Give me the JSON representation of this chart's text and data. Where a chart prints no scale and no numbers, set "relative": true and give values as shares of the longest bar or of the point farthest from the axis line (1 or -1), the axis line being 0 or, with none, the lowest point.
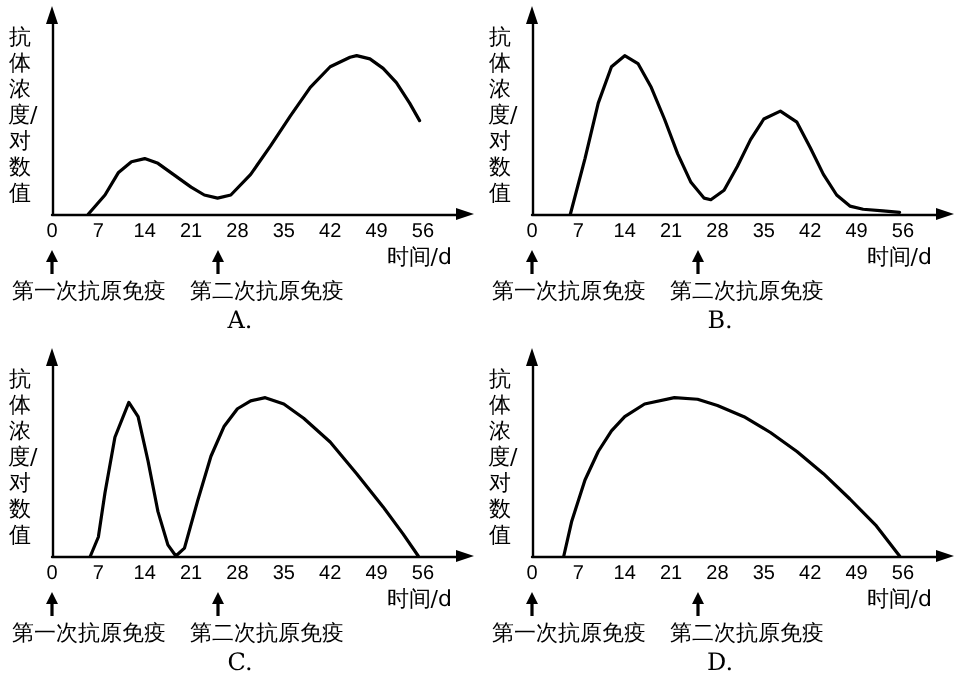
{
  "chart_data": [
    {
      "type": "line",
      "title": "A.",
      "xlabel": "时间/d",
      "ylabel": "抗体浓度/对数值",
      "relative": true,
      "xlim": [
        0,
        61
      ],
      "xticks": [
        0,
        7,
        14,
        21,
        28,
        35,
        42,
        49,
        56
      ],
      "tick_labels": "x",
      "marker": "none",
      "line_style": "solid",
      "annotations": [
        "第一次抗原免疫",
        "第二次抗原免疫"
      ],
      "series": [
        {
          "color": "#000000",
          "x": [
            5.5,
            8,
            10,
            12,
            14,
            16,
            18,
            21,
            23,
            25,
            27,
            30,
            33,
            36,
            39,
            42,
            45,
            46,
            48,
            50,
            52,
            54,
            55.5
          ],
          "values": [
            0,
            0.12,
            0.26,
            0.33,
            0.35,
            0.32,
            0.26,
            0.17,
            0.12,
            0.1,
            0.12,
            0.25,
            0.43,
            0.62,
            0.8,
            0.93,
            0.99,
            1,
            0.98,
            0.92,
            0.83,
            0.7,
            0.59
          ]
        }
      ]
    },
    {
      "type": "line",
      "title": "B.",
      "xlabel": "时间/d",
      "ylabel": "抗体浓度/对数值",
      "relative": true,
      "xlim": [
        0,
        61
      ],
      "xticks": [
        0,
        7,
        14,
        21,
        28,
        35,
        42,
        49,
        56
      ],
      "tick_labels": "x",
      "marker": "none",
      "line_style": "solid",
      "annotations": [
        "第一次抗原免疫",
        "第二次抗原免疫"
      ],
      "series": [
        {
          "color": "#000000",
          "x": [
            5.8,
            8,
            10,
            12,
            14,
            16,
            18,
            20,
            22,
            24,
            26,
            27,
            29,
            31,
            33,
            35,
            37.5,
            40,
            42,
            44,
            46,
            48,
            50,
            53,
            55.5
          ],
          "values": [
            0,
            0.35,
            0.7,
            0.93,
            1,
            0.95,
            0.8,
            0.6,
            0.38,
            0.2,
            0.1,
            0.09,
            0.15,
            0.3,
            0.47,
            0.6,
            0.65,
            0.58,
            0.42,
            0.25,
            0.12,
            0.05,
            0.03,
            0.02,
            0.01
          ]
        }
      ]
    },
    {
      "type": "line",
      "title": "C.",
      "xlabel": "时间/d",
      "ylabel": "抗体浓度/对数值",
      "relative": true,
      "xlim": [
        0,
        61
      ],
      "xticks": [
        0,
        7,
        14,
        21,
        28,
        35,
        42,
        49,
        56
      ],
      "tick_labels": "x",
      "marker": "none",
      "line_style": "solid",
      "annotations": [
        "第一次抗原免疫",
        "第二次抗原免疫"
      ],
      "series": [
        {
          "color": "#000000",
          "x": [
            5.8,
            7,
            8,
            9.5,
            11.6,
            13,
            14.5,
            16,
            17.5,
            18.7,
            20,
            22,
            24,
            26,
            28,
            30,
            32.2,
            35,
            38,
            42,
            46,
            50,
            53,
            55.3
          ],
          "values": [
            0,
            0.12,
            0.4,
            0.75,
            0.97,
            0.88,
            0.6,
            0.28,
            0.07,
            0,
            0.05,
            0.35,
            0.63,
            0.82,
            0.93,
            0.98,
            1,
            0.96,
            0.87,
            0.72,
            0.52,
            0.31,
            0.14,
            0
          ]
        }
      ]
    },
    {
      "type": "line",
      "title": "D.",
      "xlabel": "时间/d",
      "ylabel": "抗体浓度/对数值",
      "relative": true,
      "xlim": [
        0,
        61
      ],
      "xticks": [
        0,
        7,
        14,
        21,
        28,
        35,
        42,
        49,
        56
      ],
      "tick_labels": "x",
      "marker": "none",
      "line_style": "solid",
      "annotations": [
        "第一次抗原免疫",
        "第二次抗原免疫"
      ],
      "series": [
        {
          "color": "#000000",
          "x": [
            4.8,
            6,
            8,
            10,
            12,
            14,
            17,
            21.5,
            25,
            28,
            32,
            36,
            40,
            44,
            48,
            52,
            55.5
          ],
          "values": [
            0,
            0.22,
            0.48,
            0.66,
            0.79,
            0.88,
            0.96,
            1,
            0.99,
            0.95,
            0.88,
            0.78,
            0.66,
            0.52,
            0.36,
            0.19,
            0
          ]
        }
      ]
    }
  ]
}
